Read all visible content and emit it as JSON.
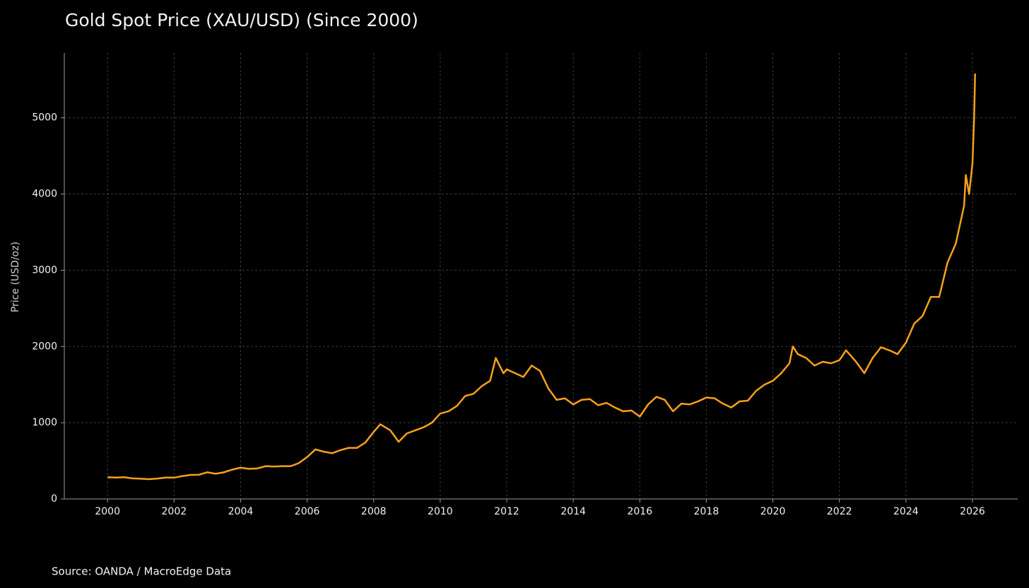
{
  "chart_data": {
    "type": "line",
    "title": "Gold Spot Price (XAU/USD) (Since 2000)",
    "y_label": "Price (USD/oz)",
    "source": "Source: OANDA / MacroEdge Data",
    "grid": true,
    "xlim": [
      1998.7,
      2027.36
    ],
    "ylim": [
      0,
      5850
    ],
    "xticks": [
      2000,
      2002,
      2004,
      2006,
      2008,
      2010,
      2012,
      2014,
      2016,
      2018,
      2020,
      2022,
      2024,
      2026
    ],
    "yticks": [
      0,
      1000,
      2000,
      3000,
      4000,
      5000
    ],
    "x": [
      2000,
      2000.25,
      2000.5,
      2000.75,
      2001,
      2001.25,
      2001.5,
      2001.75,
      2002,
      2002.25,
      2002.5,
      2002.75,
      2003,
      2003.25,
      2003.5,
      2003.75,
      2004,
      2004.25,
      2004.5,
      2004.75,
      2005,
      2005.25,
      2005.5,
      2005.75,
      2006,
      2006.25,
      2006.5,
      2006.75,
      2007,
      2007.25,
      2007.5,
      2007.75,
      2008,
      2008.2,
      2008.5,
      2008.75,
      2009,
      2009.25,
      2009.5,
      2009.75,
      2010,
      2010.25,
      2010.5,
      2010.75,
      2011,
      2011.25,
      2011.5,
      2011.67,
      2011.9,
      2012,
      2012.25,
      2012.5,
      2012.75,
      2013,
      2013.25,
      2013.5,
      2013.75,
      2014,
      2014.25,
      2014.5,
      2014.75,
      2015,
      2015.25,
      2015.5,
      2015.75,
      2016,
      2016.25,
      2016.5,
      2016.75,
      2017,
      2017.25,
      2017.5,
      2017.75,
      2018,
      2018.25,
      2018.5,
      2018.75,
      2019,
      2019.25,
      2019.5,
      2019.75,
      2020,
      2020.25,
      2020.5,
      2020.6,
      2020.75,
      2021,
      2021.25,
      2021.5,
      2021.75,
      2022,
      2022.2,
      2022.5,
      2022.75,
      2023,
      2023.25,
      2023.5,
      2023.75,
      2024,
      2024.25,
      2024.5,
      2024.75,
      2025,
      2025.25,
      2025.5,
      2025.75,
      2025.8,
      2025.9,
      2026,
      2026.05,
      2026.08
    ],
    "series": [
      {
        "name": "XAU/USD",
        "color": "#f7a01a",
        "values": [
          285,
          280,
          285,
          270,
          265,
          260,
          268,
          280,
          280,
          300,
          315,
          318,
          350,
          330,
          350,
          385,
          410,
          395,
          400,
          430,
          425,
          430,
          430,
          470,
          550,
          650,
          620,
          600,
          640,
          670,
          670,
          740,
          880,
          980,
          900,
          750,
          860,
          900,
          940,
          1000,
          1120,
          1150,
          1220,
          1350,
          1380,
          1480,
          1550,
          1850,
          1650,
          1700,
          1650,
          1600,
          1750,
          1680,
          1450,
          1300,
          1320,
          1240,
          1300,
          1310,
          1230,
          1260,
          1200,
          1150,
          1160,
          1080,
          1240,
          1340,
          1300,
          1150,
          1250,
          1240,
          1280,
          1330,
          1320,
          1250,
          1200,
          1280,
          1290,
          1420,
          1500,
          1550,
          1650,
          1780,
          2000,
          1900,
          1850,
          1750,
          1800,
          1780,
          1820,
          1950,
          1800,
          1650,
          1850,
          1990,
          1950,
          1900,
          2050,
          2300,
          2400,
          2650,
          2650,
          3100,
          3350,
          3850,
          4250,
          4000,
          4400,
          5000,
          5580
        ]
      }
    ]
  }
}
